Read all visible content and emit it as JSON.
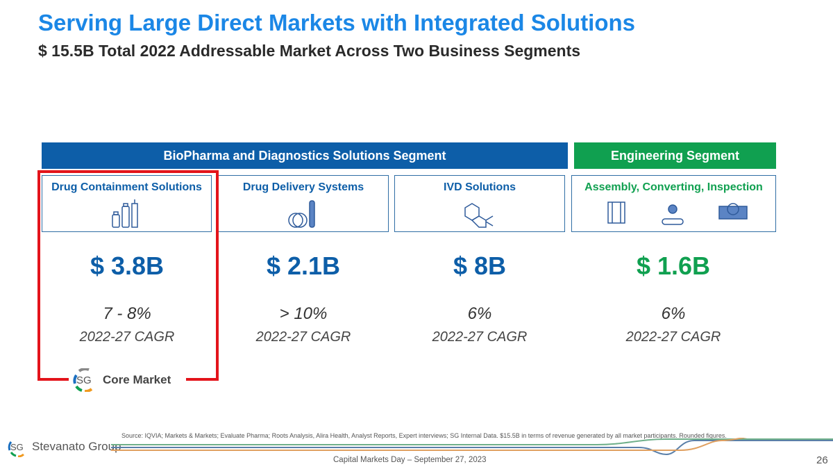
{
  "header": {
    "title": "Serving Large Direct Markets with Integrated Solutions",
    "subtitle": "$ 15.5B Total 2022 Addressable Market Across Two Business Segments"
  },
  "segments": [
    {
      "label": "BioPharma and Diagnostics Solutions Segment",
      "color": "#0d5ea8"
    },
    {
      "label": "Engineering Segment",
      "color": "#10a050"
    }
  ],
  "markets": [
    {
      "name": "Drug Containment Solutions",
      "value": "$ 3.8B",
      "growth": "7 - 8%",
      "cagr_label": "2022-27 CAGR",
      "icon": "vials-syringe-icon"
    },
    {
      "name": "Drug Delivery Systems",
      "value": "$ 2.1B",
      "growth": "> 10%",
      "cagr_label": "2022-27 CAGR",
      "icon": "pen-injector-icon"
    },
    {
      "name": "IVD Solutions",
      "value": "$ 8B",
      "growth": "6%",
      "cagr_label": "2022-27 CAGR",
      "icon": "molecule-icon"
    },
    {
      "name": "Assembly, Converting, Inspection",
      "value": "$ 1.6B",
      "growth": "6%",
      "cagr_label": "2022-27 CAGR",
      "icon": "machinery-icon"
    }
  ],
  "core_market": {
    "label": "Core Market",
    "logo_text": "SG"
  },
  "colors": {
    "blue": "#0d5ea8",
    "green": "#10a050",
    "title": "#1b87e6",
    "highlight": "#e3141b"
  },
  "footer": {
    "source": "Source: IQVIA; Markets & Markets; Evaluate Pharma; Roots Analysis, Alira Health, Analyst Reports, Expert interviews; SG Internal Data. $15.5B in terms of revenue generated by all market participants. Rounded figures.",
    "event": "Capital Markets Day – September  27, 2023",
    "page": "26",
    "company": "Stevanato Group",
    "logo_text": "SG"
  }
}
